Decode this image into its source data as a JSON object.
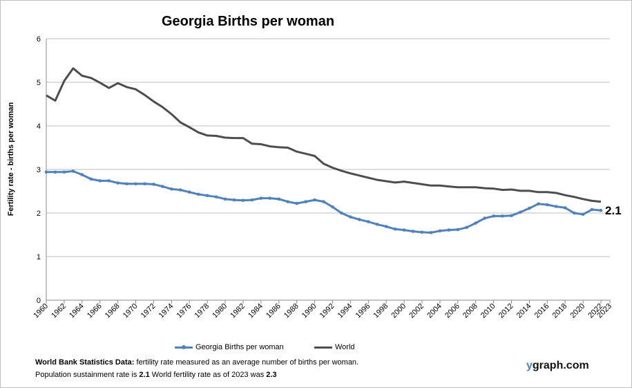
{
  "chart_data": {
    "type": "line",
    "title": "Georgia Births per woman",
    "xlabel": "",
    "ylabel": "Fertility rate  - births per woman",
    "xlim": [
      1960,
      2023
    ],
    "ylim": [
      0,
      6
    ],
    "y_ticks": [
      0,
      1,
      2,
      3,
      4,
      5,
      6
    ],
    "x_tick_labels": [
      "1960",
      "1962",
      "1964",
      "1966",
      "1968",
      "1970",
      "1972",
      "1974",
      "1976",
      "1978",
      "1980",
      "1982",
      "1984",
      "1986",
      "1988",
      "1990",
      "1992",
      "1994",
      "1996",
      "1998",
      "2000",
      "2002",
      "2004",
      "2006",
      "2008",
      "2010",
      "2012",
      "2014",
      "2016",
      "2018",
      "2020",
      "2022",
      "2023"
    ],
    "grid": "horizontal",
    "legend_position": "bottom",
    "end_label": "2.1",
    "series": [
      {
        "name": "Georgia Births per woman",
        "color": "#4f81bd",
        "markers": true,
        "x": [
          1960,
          1961,
          1962,
          1963,
          1964,
          1965,
          1966,
          1967,
          1968,
          1969,
          1970,
          1971,
          1972,
          1973,
          1974,
          1975,
          1976,
          1977,
          1978,
          1979,
          1980,
          1981,
          1982,
          1983,
          1984,
          1985,
          1986,
          1987,
          1988,
          1989,
          1990,
          1991,
          1992,
          1993,
          1994,
          1995,
          1996,
          1997,
          1998,
          1999,
          2000,
          2001,
          2002,
          2003,
          2004,
          2005,
          2006,
          2007,
          2008,
          2009,
          2010,
          2011,
          2012,
          2013,
          2014,
          2015,
          2016,
          2017,
          2018,
          2019,
          2020,
          2021,
          2022
        ],
        "values": [
          2.94,
          2.94,
          2.94,
          2.96,
          2.88,
          2.78,
          2.74,
          2.74,
          2.69,
          2.67,
          2.67,
          2.67,
          2.66,
          2.61,
          2.55,
          2.53,
          2.48,
          2.43,
          2.4,
          2.37,
          2.32,
          2.3,
          2.29,
          2.3,
          2.34,
          2.34,
          2.32,
          2.26,
          2.22,
          2.26,
          2.3,
          2.26,
          2.14,
          2.0,
          1.91,
          1.85,
          1.8,
          1.74,
          1.69,
          1.63,
          1.61,
          1.58,
          1.56,
          1.55,
          1.59,
          1.61,
          1.62,
          1.67,
          1.77,
          1.88,
          1.93,
          1.93,
          1.94,
          2.02,
          2.11,
          2.21,
          2.19,
          2.15,
          2.12,
          2.0,
          1.97,
          2.08,
          2.06
        ]
      },
      {
        "name": "World",
        "color": "#4d4d4d",
        "markers": false,
        "x": [
          1960,
          1961,
          1962,
          1963,
          1964,
          1965,
          1966,
          1967,
          1968,
          1969,
          1970,
          1971,
          1972,
          1973,
          1974,
          1975,
          1976,
          1977,
          1978,
          1979,
          1980,
          1981,
          1982,
          1983,
          1984,
          1985,
          1986,
          1987,
          1988,
          1989,
          1990,
          1991,
          1992,
          1993,
          1994,
          1995,
          1996,
          1997,
          1998,
          1999,
          2000,
          2001,
          2002,
          2003,
          2004,
          2005,
          2006,
          2007,
          2008,
          2009,
          2010,
          2011,
          2012,
          2013,
          2014,
          2015,
          2016,
          2017,
          2018,
          2019,
          2020,
          2021,
          2022
        ],
        "values": [
          4.7,
          4.58,
          5.03,
          5.32,
          5.15,
          5.1,
          4.99,
          4.87,
          4.98,
          4.89,
          4.84,
          4.71,
          4.56,
          4.43,
          4.27,
          4.08,
          3.97,
          3.85,
          3.78,
          3.77,
          3.73,
          3.72,
          3.72,
          3.59,
          3.58,
          3.53,
          3.51,
          3.5,
          3.41,
          3.36,
          3.31,
          3.13,
          3.04,
          2.97,
          2.91,
          2.86,
          2.81,
          2.76,
          2.73,
          2.7,
          2.72,
          2.69,
          2.66,
          2.63,
          2.63,
          2.61,
          2.59,
          2.59,
          2.59,
          2.57,
          2.56,
          2.53,
          2.54,
          2.51,
          2.51,
          2.48,
          2.48,
          2.46,
          2.41,
          2.37,
          2.32,
          2.28,
          2.26
        ]
      }
    ]
  },
  "footer": {
    "line1_bold": "World Bank Statistics Data:",
    "line1_text": " fertility rate measured as an average number  of births per woman.",
    "line2_text1": "Population sustainment rate is ",
    "line2_bold1": "2.1",
    "line2_text2": "     World fertility rate as of 2023 was ",
    "line2_bold2": "2.3"
  },
  "brand": {
    "prefix": "y",
    "rest": "graph.com"
  }
}
